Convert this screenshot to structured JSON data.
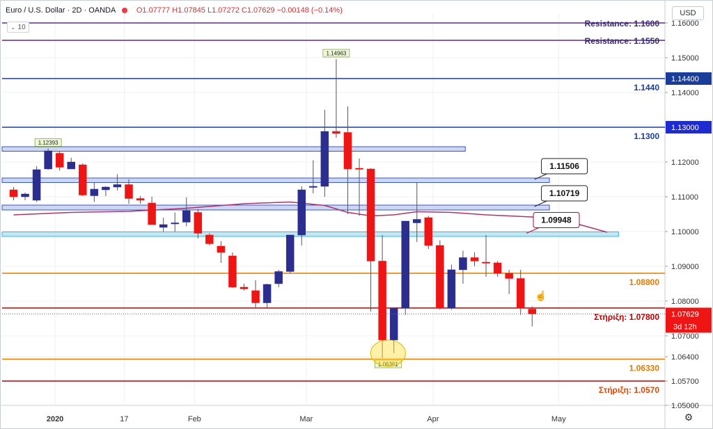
{
  "header": {
    "symbol": "Euro / U.S. Dollar · 2D · OANDA",
    "ohlc": "O1.07777 H1.07845 L1.07272 C1.07629 −0.00148 (−0.14%)"
  },
  "indicator_toggle": "10",
  "currency_button": "USD",
  "icons": {
    "settings": "gear-icon",
    "cursor": "hand-pointer-icon",
    "collapse": "chevron-icon",
    "status": "dot-icon"
  },
  "colors": {
    "up": "#2b2e8f",
    "down": "#f01515",
    "ma": "#b0306b",
    "resistance": "#5b2a86",
    "level_blue": "#1a3c9a",
    "level_orange": "#e07b00",
    "level_red": "#b50000"
  },
  "chart_data": {
    "type": "candlestick",
    "ylim": [
      1.05,
      1.165
    ],
    "y_ticks": [
      "1.16000",
      "1.15000",
      "1.14000",
      "1.13000",
      "1.12000",
      "1.11000",
      "1.10000",
      "1.09000",
      "1.08000",
      "1.07000",
      "1.06400",
      "1.05700",
      "1.05000"
    ],
    "x_labels": [
      {
        "label": "2020",
        "i": 3.6
      },
      {
        "label": "17",
        "i": 9.6
      },
      {
        "label": "Feb",
        "i": 15.7
      },
      {
        "label": "Mar",
        "i": 25.4
      },
      {
        "label": "Apr",
        "i": 36.4
      },
      {
        "label": "May",
        "i": 47.3
      }
    ],
    "candles": [
      [
        1.112,
        1.1128,
        1.109,
        1.11
      ],
      [
        1.11,
        1.1112,
        1.109,
        1.1108
      ],
      [
        1.109,
        1.1188,
        1.1085,
        1.1178
      ],
      [
        1.118,
        1.1239,
        1.1178,
        1.1232
      ],
      [
        1.1225,
        1.1232,
        1.1175,
        1.1185
      ],
      [
        1.118,
        1.1212,
        1.118,
        1.12
      ],
      [
        1.1192,
        1.1196,
        1.1102,
        1.1105
      ],
      [
        1.1103,
        1.114,
        1.1085,
        1.1122
      ],
      [
        1.112,
        1.113,
        1.1102,
        1.1128
      ],
      [
        1.1128,
        1.1165,
        1.1118,
        1.1135
      ],
      [
        1.1135,
        1.115,
        1.108,
        1.1095
      ],
      [
        1.1095,
        1.1102,
        1.108,
        1.109
      ],
      [
        1.1082,
        1.11,
        1.102,
        1.102
      ],
      [
        1.1012,
        1.104,
        1.1,
        1.102
      ],
      [
        1.1025,
        1.1055,
        1.1,
        1.1025
      ],
      [
        1.1027,
        1.1098,
        1.1015,
        1.106
      ],
      [
        1.1055,
        1.1065,
        1.098,
        1.0995
      ],
      [
        1.099,
        1.0995,
        1.096,
        1.0965
      ],
      [
        1.0958,
        1.0972,
        1.091,
        1.094
      ],
      [
        1.093,
        1.094,
        1.0838,
        1.084
      ],
      [
        1.084,
        1.085,
        1.083,
        1.0835
      ],
      [
        1.083,
        1.086,
        1.0781,
        1.0795
      ],
      [
        1.0795,
        1.085,
        1.078,
        1.0848
      ],
      [
        1.085,
        1.089,
        1.084,
        1.0885
      ],
      [
        1.0885,
        1.099,
        1.088,
        1.099
      ],
      [
        1.099,
        1.113,
        1.096,
        1.112
      ],
      [
        1.113,
        1.1205,
        1.111,
        1.113
      ],
      [
        1.113,
        1.135,
        1.11,
        1.1288
      ],
      [
        1.1288,
        1.1496,
        1.127,
        1.1282
      ],
      [
        1.1285,
        1.136,
        1.105,
        1.118
      ],
      [
        1.1182,
        1.121,
        1.1045,
        1.118
      ],
      [
        1.118,
        1.1182,
        1.077,
        1.0915
      ],
      [
        1.0915,
        1.099,
        1.0636,
        1.0688
      ],
      [
        1.0688,
        1.078,
        1.065,
        1.078
      ],
      [
        1.078,
        1.103,
        1.076,
        1.103
      ],
      [
        1.1025,
        1.114,
        1.097,
        1.1035
      ],
      [
        1.104,
        1.1045,
        1.095,
        1.096
      ],
      [
        1.096,
        1.0975,
        1.0775,
        1.078
      ],
      [
        1.078,
        1.0905,
        1.0775,
        1.089
      ],
      [
        1.089,
        1.0945,
        1.085,
        1.0925
      ],
      [
        1.0925,
        1.094,
        1.09,
        1.0915
      ],
      [
        1.0912,
        1.099,
        1.087,
        1.091
      ],
      [
        1.091,
        1.0915,
        1.087,
        1.088
      ],
      [
        1.088,
        1.089,
        1.082,
        1.0865
      ],
      [
        1.0865,
        1.089,
        1.076,
        1.078
      ],
      [
        1.0777,
        1.0785,
        1.0727,
        1.0763
      ]
    ],
    "ma_line": [
      [
        0,
        1.1048
      ],
      [
        5,
        1.1055
      ],
      [
        10,
        1.1058
      ],
      [
        15,
        1.1067
      ],
      [
        20,
        1.108
      ],
      [
        24,
        1.1085
      ],
      [
        27,
        1.1075
      ],
      [
        29,
        1.1055
      ],
      [
        31,
        1.1045
      ],
      [
        33,
        1.1048
      ],
      [
        35,
        1.1057
      ],
      [
        38,
        1.1055
      ],
      [
        41,
        1.1048
      ],
      [
        45,
        1.1042
      ],
      [
        48,
        1.103
      ],
      [
        50,
        1.1012
      ],
      [
        51.5,
        1.0998
      ]
    ],
    "h_levels": [
      {
        "price": 1.16,
        "label": "Resistance: 1.1600",
        "style": "resistance"
      },
      {
        "price": 1.155,
        "label": "Resistance: 1.1550",
        "style": "resistance"
      },
      {
        "price": 1.144,
        "label": "1.1440",
        "style": "blue",
        "axis_label": "1.14400"
      },
      {
        "price": 1.13,
        "label": "1.1300",
        "style": "blue",
        "axis_label": "1.13000"
      },
      {
        "price": 1.088,
        "label": "1.08800",
        "style": "orange"
      },
      {
        "price": 1.078,
        "label": "Στήριξη: 1.07800",
        "style": "red"
      },
      {
        "price": 1.0633,
        "label": "1.06330",
        "style": "orange"
      },
      {
        "price": 1.057,
        "label": "Στήριξη: 1.0570",
        "style": "red"
      }
    ],
    "zones": [
      {
        "top": 1.124,
        "bottom": 1.1235,
        "x_end": 39.2
      },
      {
        "top": 1.115,
        "bottom": 1.1145,
        "x_end": 46.5
      },
      {
        "top": 1.1072,
        "bottom": 1.1066,
        "x_end": 46.5
      },
      {
        "top": 1.0995,
        "bottom": 1.099,
        "x_end": 52.5
      }
    ],
    "callouts": [
      {
        "label": "1.11506",
        "price": 1.115,
        "x": 45.2
      },
      {
        "label": "1.10719",
        "price": 1.1072,
        "x": 45.2
      },
      {
        "label": "1.09948",
        "price": 1.0995,
        "x": 44.5
      }
    ],
    "high_low_labels": [
      {
        "label": "1.12393",
        "i": 3,
        "price": 1.1239,
        "pos": "above"
      },
      {
        "label": "1.14963",
        "i": 28,
        "price": 1.1496,
        "pos": "above"
      },
      {
        "label": "1.06361",
        "i": 32.5,
        "price": 1.0636,
        "pos": "below"
      }
    ],
    "highlight": {
      "i": 32.5,
      "price": 1.065
    },
    "last_price": {
      "value": "1.07629",
      "price": 1.0763
    },
    "countdown": "3d 12h"
  }
}
